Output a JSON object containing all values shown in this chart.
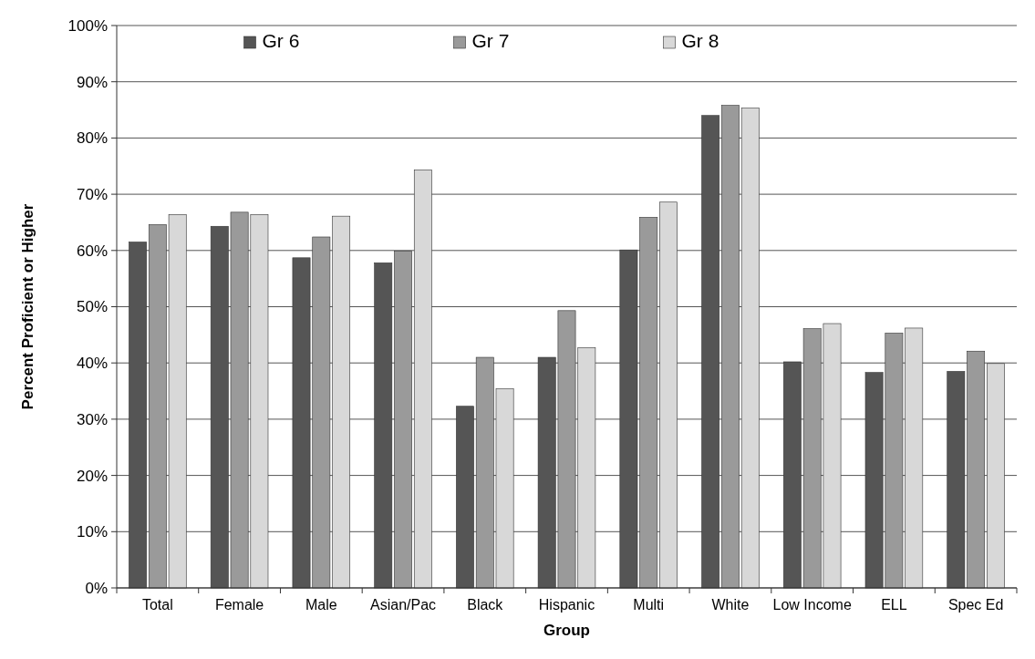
{
  "chart_data": {
    "type": "bar",
    "xlabel": "Group",
    "ylabel": "Percent Proficient or Higher",
    "categories": [
      "Total",
      "Female",
      "Male",
      "Asian/Pac",
      "Black",
      "Hispanic",
      "Multi",
      "White",
      "Low Income",
      "ELL",
      "Spec Ed"
    ],
    "series": [
      {
        "name": "Gr 6",
        "color": "#555555",
        "values": [
          61.5,
          64.3,
          58.7,
          57.8,
          32.3,
          41.0,
          60.1,
          84.0,
          40.2,
          38.3,
          38.5
        ]
      },
      {
        "name": "Gr 7",
        "color": "#9a9a9a",
        "values": [
          64.6,
          66.8,
          62.4,
          59.9,
          41.0,
          49.3,
          65.9,
          85.8,
          46.1,
          45.3,
          42.1
        ]
      },
      {
        "name": "Gr 8",
        "color": "#d8d8d8",
        "values": [
          66.4,
          66.4,
          66.1,
          74.3,
          35.4,
          42.7,
          68.6,
          85.3,
          47.0,
          46.2,
          39.9
        ]
      }
    ],
    "ylim": [
      0,
      100
    ],
    "yticks": [
      {
        "value": 0,
        "label": "0%"
      },
      {
        "value": 10,
        "label": "10%"
      },
      {
        "value": 20,
        "label": "20%"
      },
      {
        "value": 30,
        "label": "30%"
      },
      {
        "value": 40,
        "label": "40%"
      },
      {
        "value": 50,
        "label": "50%"
      },
      {
        "value": 60,
        "label": "60%"
      },
      {
        "value": 70,
        "label": "70%"
      },
      {
        "value": 80,
        "label": "80%"
      },
      {
        "value": 90,
        "label": "90%"
      },
      {
        "value": 100,
        "label": "100%"
      }
    ],
    "grid": "y",
    "legend": "top"
  }
}
